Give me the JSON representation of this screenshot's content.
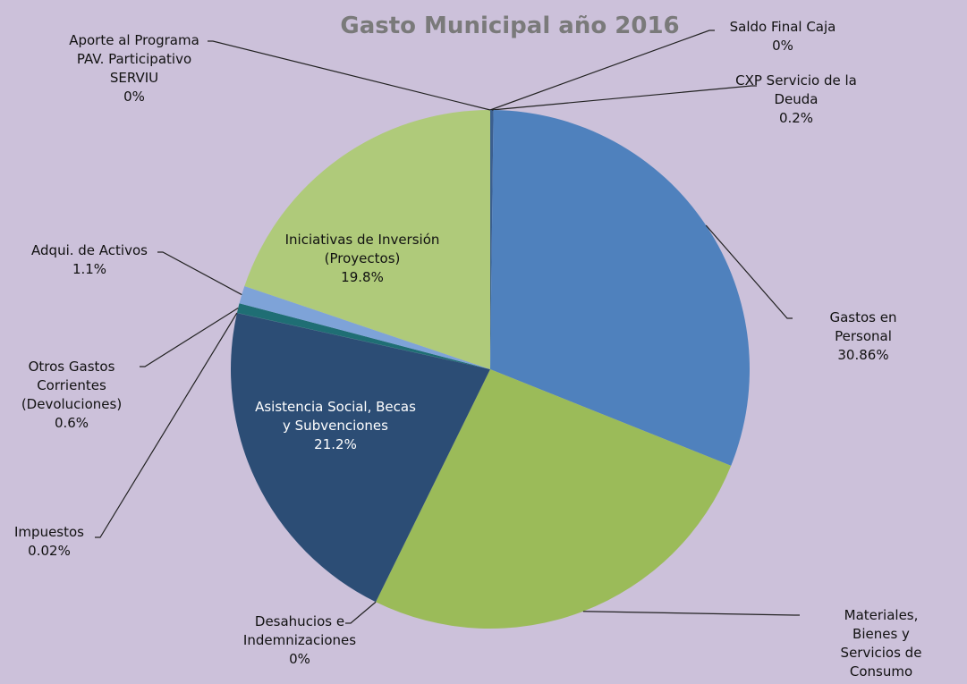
{
  "chart_data": {
    "type": "pie",
    "title": "Gasto Municipal año 2016",
    "categories": [
      "Saldo Final Caja",
      "CXP Servicio de la\nDeuda",
      "Gastos en Personal",
      "Materiales, Bienes y\nServicios de Consumo",
      "Desahucios e\nIndemnizaciones",
      "Asistencia Social, Becas\ny Subvenciones",
      "Impuestos",
      "Otros Gastos\nCorrientes\n(Devoluciones)",
      "Adqui. de Activos",
      "Iniciativas de Inversión\n(Proyectos)",
      "Aporte al Programa\nPAV. Participativo\nSERVIU"
    ],
    "values": [
      0,
      0.2,
      30.86,
      26.2,
      0,
      21.2,
      0.02,
      0.6,
      1.1,
      19.8,
      0
    ],
    "value_labels": [
      "0%",
      "0.2%",
      "30.86%",
      "26.2%",
      "0%",
      "21.2%",
      "0.02%",
      "0.6%",
      "1.1%",
      "19.8%",
      "0%"
    ],
    "colors": [
      "#4f81bd",
      "#3b5f8f",
      "#4f81bd",
      "#9bbb59",
      "#9bbb59",
      "#2c4d75",
      "#1a5f6a",
      "#1f6e74",
      "#7ea3d8",
      "#afca7a",
      "#afca7a"
    ]
  }
}
